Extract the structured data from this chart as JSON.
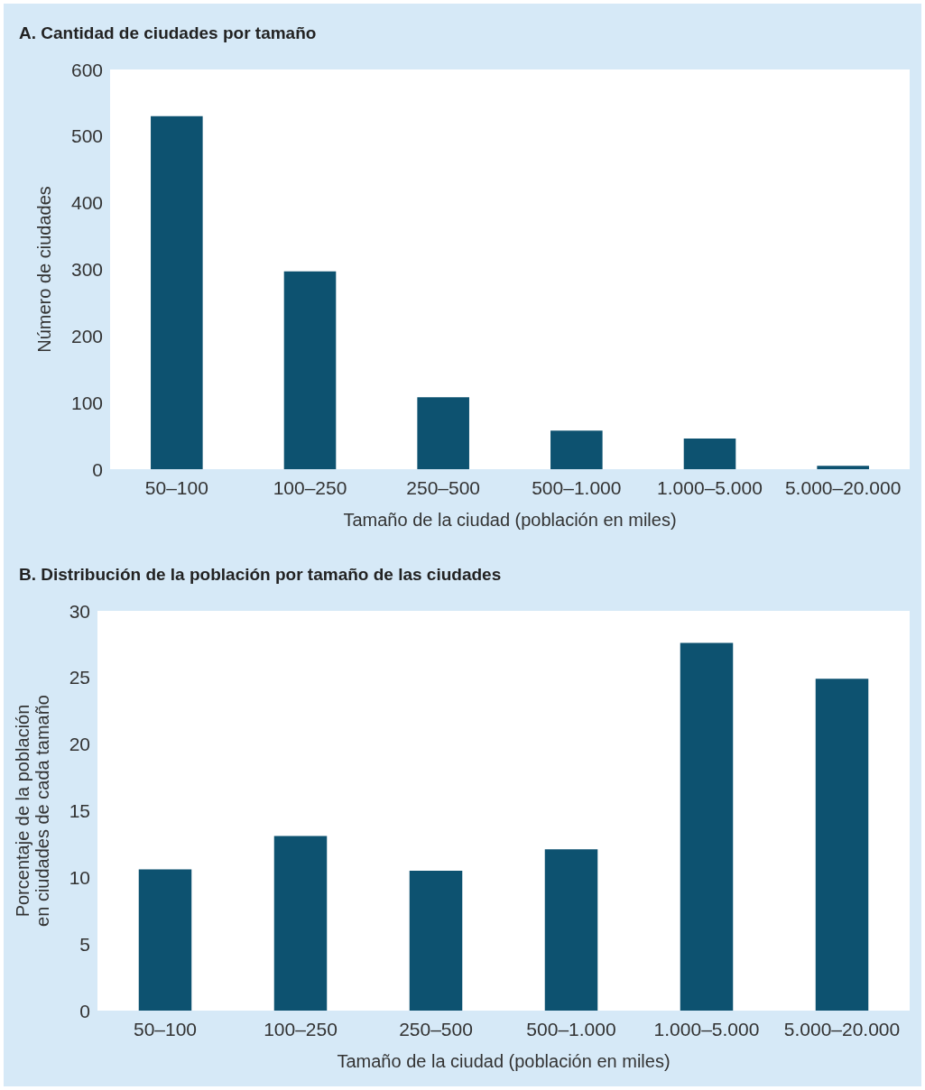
{
  "chart_data": [
    {
      "type": "bar",
      "title": "A. Cantidad de ciudades por tamaño",
      "xlabel": "Tamaño de la ciudad (población en miles)",
      "ylabel": "Número de ciudades",
      "categories": [
        "50–100",
        "100–250",
        "250–500",
        "500–1.000",
        "1.000–5.000",
        "5.000–20.000"
      ],
      "values": [
        530,
        297,
        108,
        58,
        46,
        5
      ],
      "color": "#0d5270",
      "ylim": [
        0,
        600
      ],
      "yticks": [
        0,
        100,
        200,
        300,
        400,
        500,
        600
      ]
    },
    {
      "type": "bar",
      "title": "B. Distribución de la población por tamaño de las ciudades",
      "xlabel": "Tamaño de la ciudad (población en miles)",
      "ylabel": "Porcentaje de la población\nen ciudades de cada tamaño",
      "categories": [
        "50–100",
        "100–250",
        "250–500",
        "500–1.000",
        "1.000–5.000",
        "5.000–20.000"
      ],
      "values": [
        10.6,
        13.1,
        10.5,
        12.1,
        27.6,
        24.9
      ],
      "color": "#0d5270",
      "ylim": [
        0,
        30
      ],
      "yticks": [
        0,
        5,
        10,
        15,
        20,
        25,
        30
      ]
    }
  ]
}
